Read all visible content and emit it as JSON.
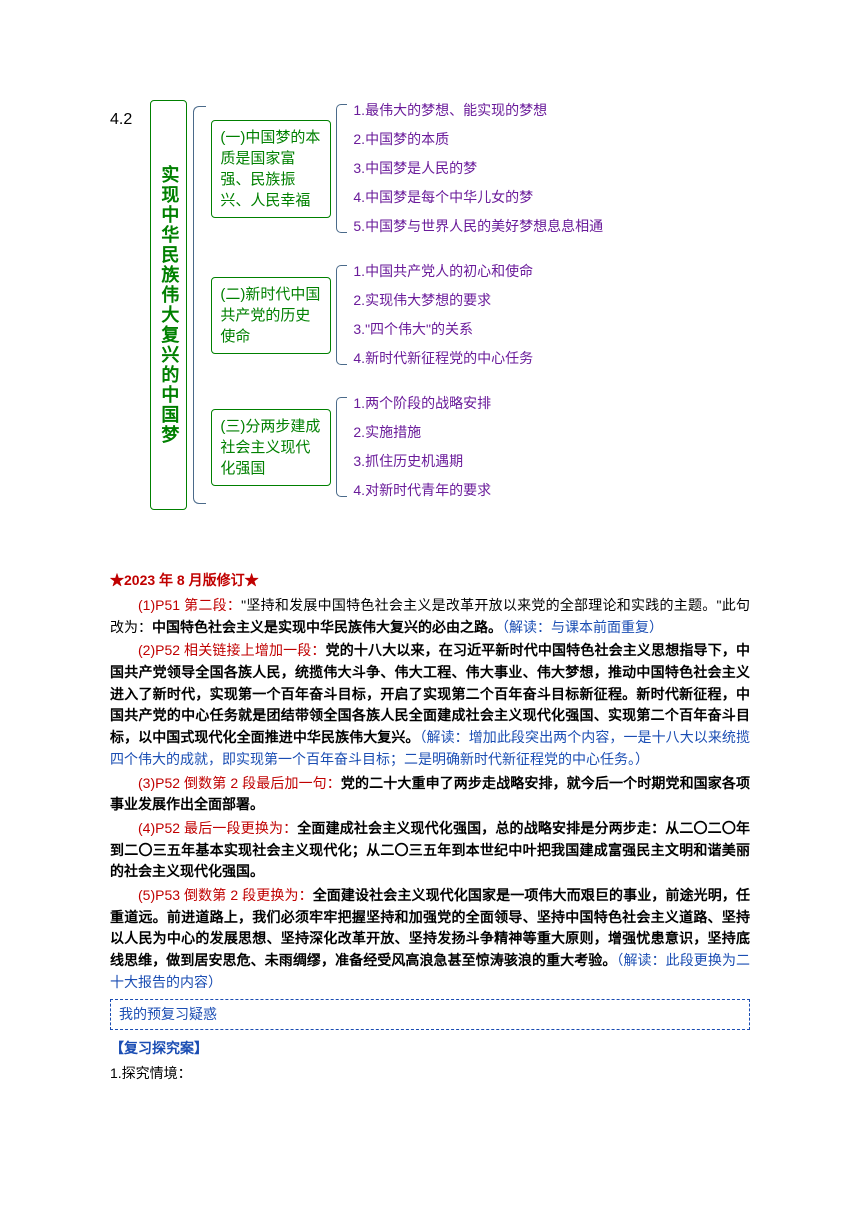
{
  "diagram": {
    "section_number": "4.2",
    "main_title": "实现中华民族伟大复兴的中国梦",
    "colors": {
      "main_border": "#008000",
      "main_text": "#008000",
      "bracket": "#4a6a8a",
      "item_text": "#6a1b9a"
    },
    "groups": [
      {
        "title": "(一)中国梦的本质是国家富强、民族振兴、人民幸福",
        "items": [
          "1.最伟大的梦想、能实现的梦想",
          "2.中国梦的本质",
          "3.中国梦是人民的梦",
          "4.中国梦是每个中华儿女的梦",
          "5.中国梦与世界人民的美好梦想息息相通"
        ]
      },
      {
        "title": "(二)新时代中国共产党的历史使命",
        "items": [
          "1.中国共产党人的初心和使命",
          "2.实现伟大梦想的要求",
          "3.\"四个伟大\"的关系",
          "4.新时代新征程党的中心任务"
        ]
      },
      {
        "title": "(三)分两步建成社会主义现代化强国",
        "items": [
          "1.两个阶段的战略安排",
          "2.实施措施",
          "3.抓住历史机遇期",
          "4.对新时代青年的要求"
        ]
      }
    ]
  },
  "revision": {
    "header": "★2023 年 8 月版修订★",
    "items": [
      {
        "lead": "(1)P51 第二段：",
        "lead_color": "#c00000",
        "quoted": "\"坚持和发展中国特色社会主义是改革开放以来党的全部理论和实践的主题。\"",
        "quoted_color": "#000000",
        "mid": "此句改为：",
        "mid_color": "#000000",
        "body": "中国特色社会主义是实现中华民族伟大复兴的必由之路。",
        "body_color": "#000000",
        "note": "（解读：与课本前面重复）",
        "note_color": "#1a4db3"
      },
      {
        "lead": "(2)P52 相关链接上增加一段：",
        "lead_color": "#c00000",
        "body": "党的十八大以来，在习近平新时代中国特色社会主义思想指导下，中国共产党领导全国各族人民，统揽伟大斗争、伟大工程、伟大事业、伟大梦想，推动中国特色社会主义进入了新时代，实现第一个百年奋斗目标，开启了实现第二个百年奋斗目标新征程。新时代新征程，中国共产党的中心任务就是团结带领全国各族人民全面建成社会主义现代化强国、实现第二个百年奋斗目标，以中国式现代化全面推进中华民族伟大复兴。",
        "body_color": "#000000",
        "note": "（解读：增加此段突出两个内容，一是十八大以来统揽四个伟大的成就，即实现第一个百年奋斗目标；二是明确新时代新征程党的中心任务。）",
        "note_color": "#1a4db3"
      },
      {
        "lead": "(3)P52 倒数第 2 段最后加一句：",
        "lead_color": "#c00000",
        "body": "党的二十大重申了两步走战略安排，就今后一个时期党和国家各项事业发展作出全面部署。",
        "body_color": "#000000"
      },
      {
        "lead": "(4)P52 最后一段更换为：",
        "lead_color": "#c00000",
        "body": "全面建成社会主义现代化强国，总的战略安排是分两步走：从二〇二〇年到二〇三五年基本实现社会主义现代化；从二〇三五年到本世纪中叶把我国建成富强民主文明和谐美丽的社会主义现代化强国。",
        "body_color": "#000000"
      },
      {
        "lead": "(5)P53 倒数第 2 段更换为：",
        "lead_color": "#c00000",
        "body": "全面建设社会主义现代化国家是一项伟大而艰巨的事业，前途光明，任重道远。前进道路上，我们必须牢牢把握坚持和加强党的全面领导、坚持中国特色社会主义道路、坚持以人民为中心的发展思想、坚持深化改革开放、坚持发扬斗争精神等重大原则，增强忧患意识，坚持底线思维，做到居安思危、未雨绸缪，准备经受风高浪急甚至惊涛骇浪的重大考验。",
        "body_color": "#000000",
        "note": "（解读：此段更换为二十大报告的内容）",
        "note_color": "#1a4db3"
      }
    ]
  },
  "question_box_label": "我的预复习疑惑",
  "explore": {
    "header": "【复习探究案】",
    "line1": "1.探究情境："
  }
}
